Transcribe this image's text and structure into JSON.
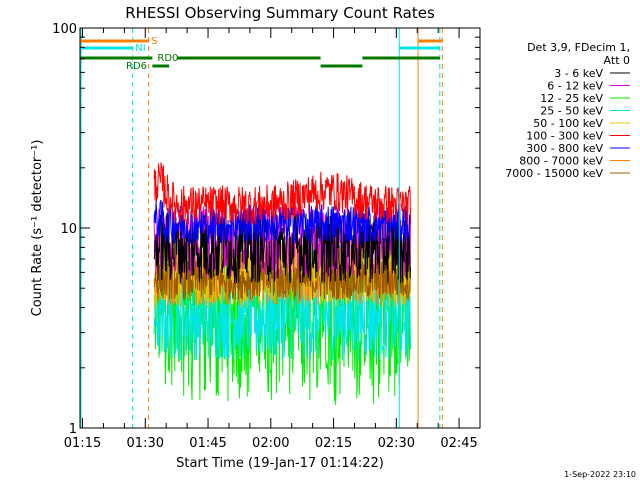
{
  "chart_data": {
    "type": "line",
    "title": "RHESSI Observing Summary Count Rates",
    "xlabel": "Start Time (19-Jan-17 01:14:22)",
    "ylabel": "Count Rate (s⁻¹ detector⁻¹)",
    "y_scale": "log",
    "ylim": [
      1,
      100
    ],
    "xlim_minutes": [
      0,
      95.6
    ],
    "x_ticks": [
      {
        "label": "01:15",
        "t": 0.6
      },
      {
        "label": "01:30",
        "t": 15.6
      },
      {
        "label": "01:45",
        "t": 30.6
      },
      {
        "label": "02:00",
        "t": 45.6
      },
      {
        "label": "02:15",
        "t": 60.6
      },
      {
        "label": "02:30",
        "t": 75.6
      },
      {
        "label": "02:45",
        "t": 90.6
      }
    ],
    "y_tick_labels": [
      "1",
      "10",
      "100"
    ],
    "legend_header": [
      "Det 3,9, FDecim 1,",
      "Att 0"
    ],
    "legend_position": "right",
    "series": [
      {
        "name": "3 - 6 keV",
        "color": "#000000",
        "level": 8.0,
        "spread": 0.18
      },
      {
        "name": "6 - 12 keV",
        "color": "#e000e0",
        "level": 8.5,
        "spread": 0.18
      },
      {
        "name": "12 - 25 keV",
        "color": "#00ee00",
        "level": 4.2,
        "spread": 0.35
      },
      {
        "name": "25 - 50 keV",
        "color": "#00e5e5",
        "level": 3.6,
        "spread": 0.22
      },
      {
        "name": "50 - 100 keV",
        "color": "#e8c400",
        "level": 6.0,
        "spread": 0.18
      },
      {
        "name": "100 - 300 keV",
        "color": "#ff0000",
        "level": 13.0,
        "spread": 0.1
      },
      {
        "name": "300 - 800 keV",
        "color": "#0000ff",
        "level": 10.5,
        "spread": 0.1
      },
      {
        "name": "800 - 7000 keV",
        "color": "#ff8000",
        "level": 5.8,
        "spread": 0.15
      },
      {
        "name": "7000 - 15000 keV",
        "color": "#9a5b00",
        "level": 5.5,
        "spread": 0.1
      }
    ],
    "data_interval_minutes": [
      17.7,
      79.0
    ],
    "markers": [
      {
        "label": "S",
        "color": "#ff8000",
        "segments": [
          [
            0,
            16.4
          ]
        ]
      },
      {
        "label": "NI",
        "color": "#00e5e5",
        "segments": [
          [
            0,
            12.6
          ],
          [
            76.3,
            86.0
          ]
        ]
      },
      {
        "label": "RD0",
        "color": "#007a00",
        "segments": [
          [
            0,
            17.3
          ],
          [
            23.2,
            57.5
          ],
          [
            67.5,
            86.0
          ]
        ]
      },
      {
        "label": "RD6",
        "color": "#007a00",
        "segments": [
          [
            17.3,
            21.3
          ],
          [
            57.5,
            67.5
          ]
        ]
      }
    ],
    "vertical_lines": [
      {
        "t": 12.6,
        "color": "#00e5e5",
        "style": "dashed"
      },
      {
        "t": 16.4,
        "color": "#ff8000",
        "style": "dashed"
      },
      {
        "t": 76.3,
        "color": "#00e5e5",
        "style": "solid"
      },
      {
        "t": 80.8,
        "color": "#ff8000",
        "style": "solid"
      },
      {
        "t": 86.0,
        "color": "#00e5e5",
        "style": "dashed"
      },
      {
        "t": 86.6,
        "color": "#ff8000",
        "style": "dashed"
      }
    ],
    "footer_date": "1-Sep-2022 23:10"
  }
}
